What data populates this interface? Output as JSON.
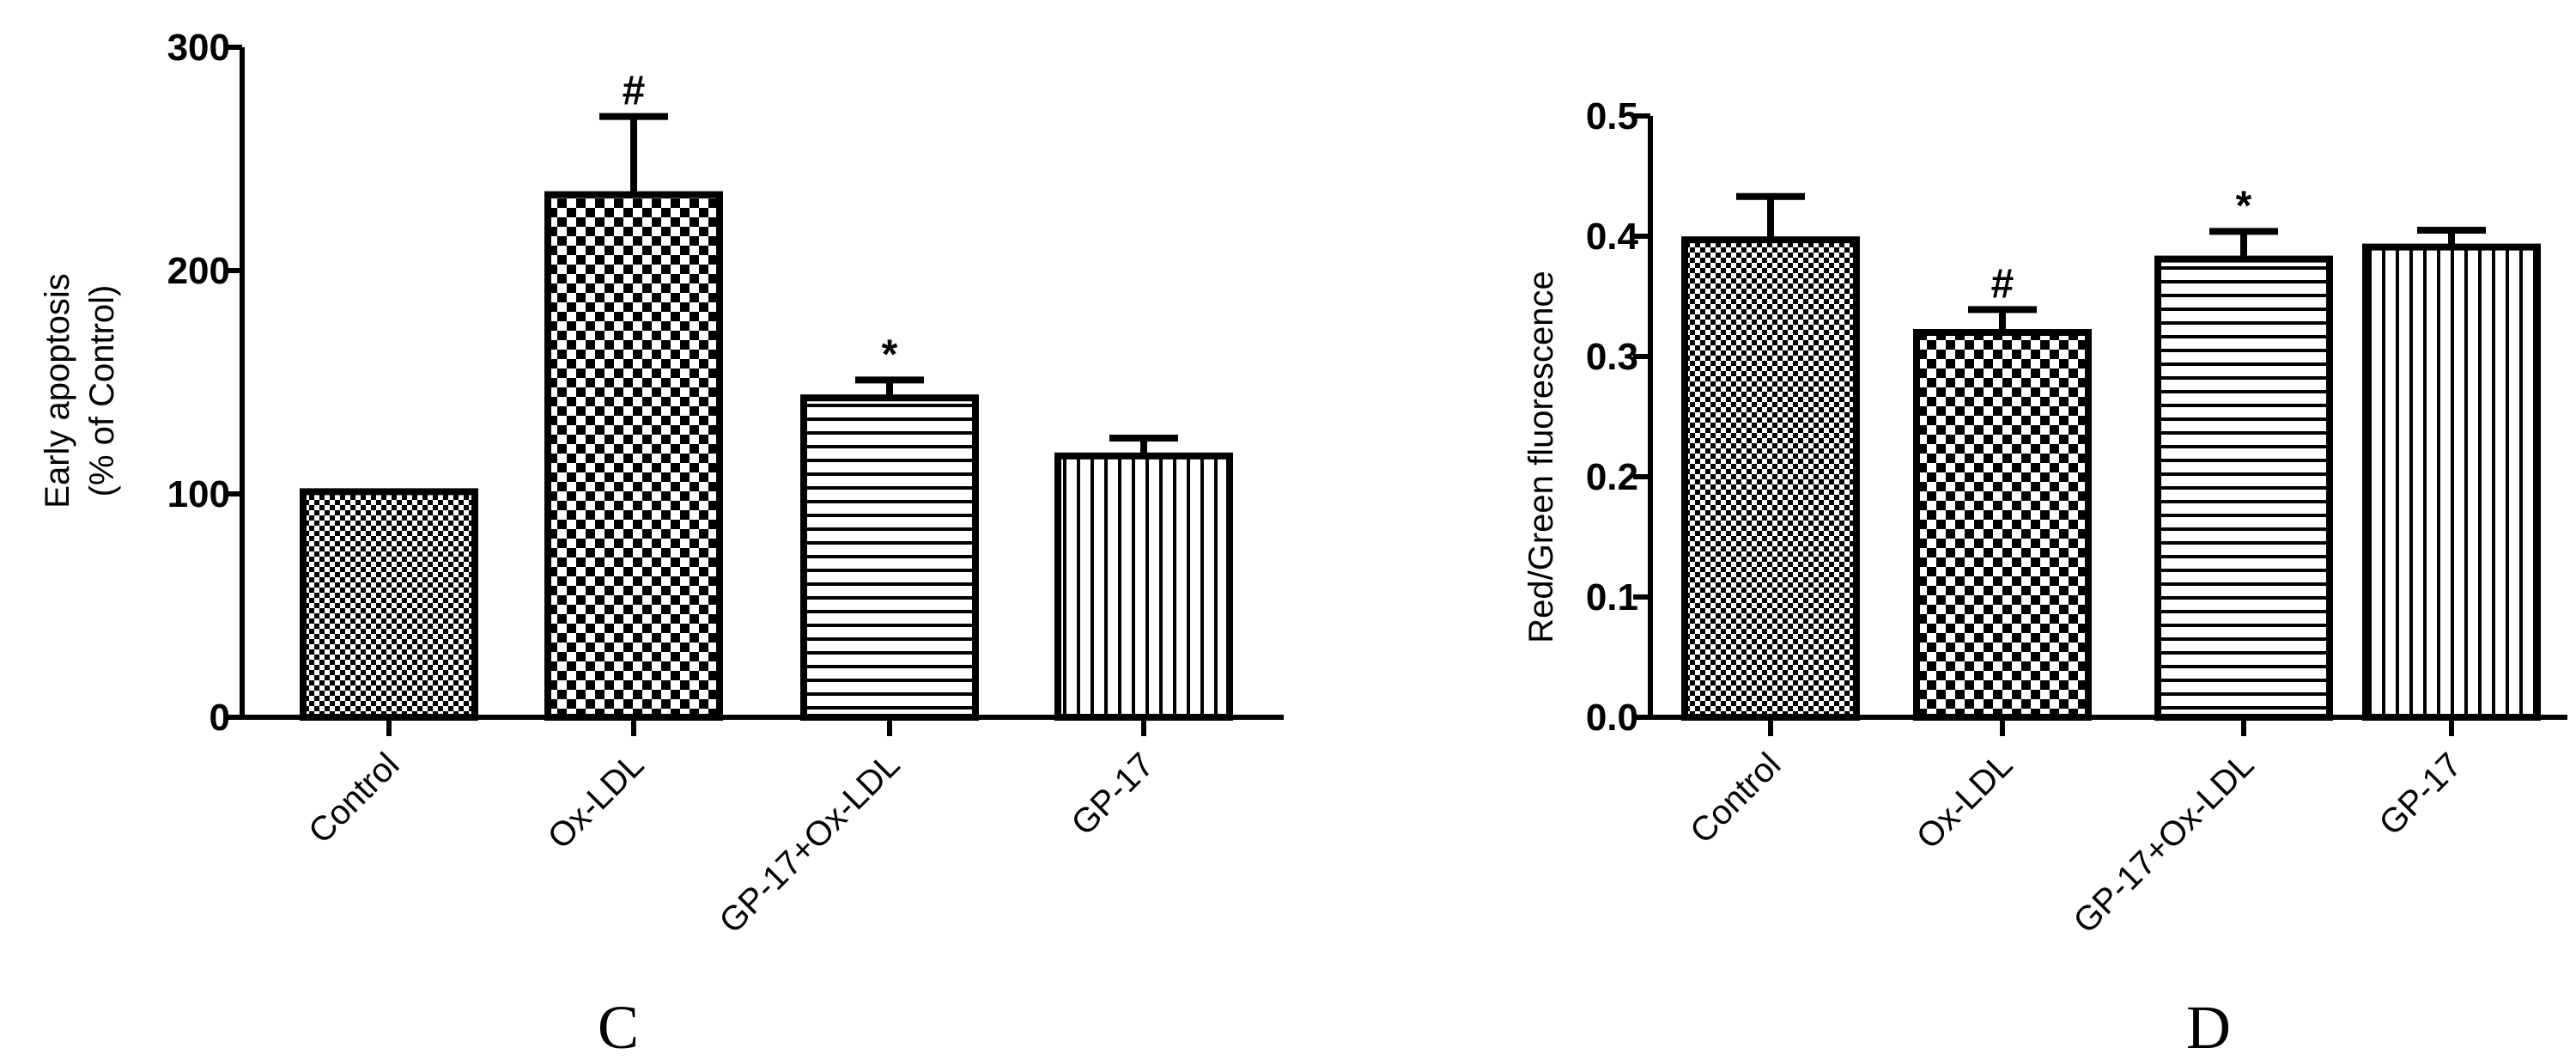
{
  "chart_data": [
    {
      "type": "bar",
      "panel_label": "C",
      "ylabel": [
        "Early apoptosis",
        "(% of Control)"
      ],
      "ylim": [
        0,
        300
      ],
      "yticks": [
        "0",
        "100",
        "200",
        "300"
      ],
      "categories": [
        "Control",
        "Ox-LDL",
        "GP-17+Ox-LDL",
        "GP-17"
      ],
      "values": [
        101,
        234,
        143,
        117
      ],
      "errors": [
        0,
        35,
        8,
        8
      ],
      "markers": [
        "",
        "#",
        "*",
        ""
      ],
      "patterns": [
        "fine-check",
        "coarse-check",
        "horizontal-lines",
        "vertical-lines"
      ]
    },
    {
      "type": "bar",
      "panel_label": "D",
      "ylabel": [
        "Red/Green fluorescence"
      ],
      "ylim": [
        0,
        0.5
      ],
      "yticks": [
        "0.0",
        "0.1",
        "0.2",
        "0.3",
        "0.4",
        "0.5"
      ],
      "categories": [
        "Control",
        "Ox-LDL",
        "GP-17+Ox-LDL",
        "GP-17"
      ],
      "values": [
        0.397,
        0.32,
        0.381,
        0.391
      ],
      "errors": [
        0.036,
        0.019,
        0.023,
        0.014
      ],
      "markers": [
        "",
        "#",
        "*",
        ""
      ],
      "patterns": [
        "fine-check",
        "coarse-check",
        "horizontal-lines",
        "vertical-lines"
      ]
    }
  ]
}
